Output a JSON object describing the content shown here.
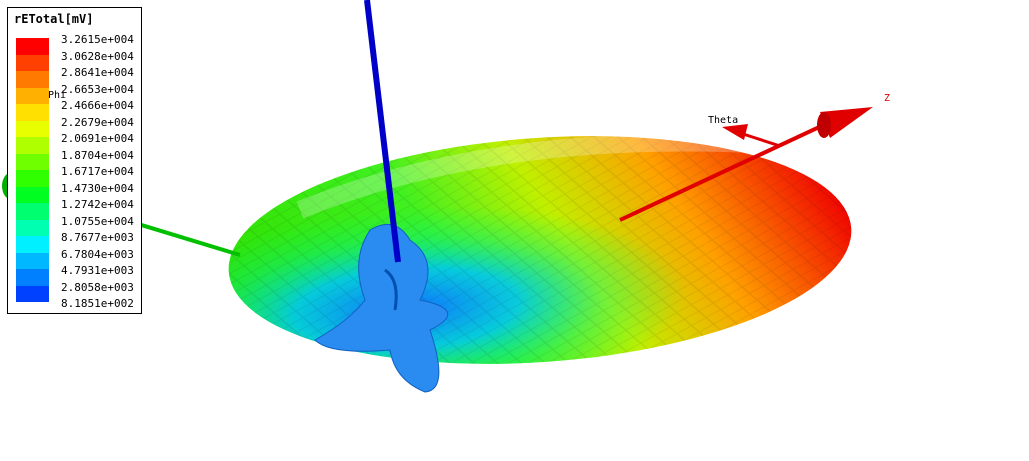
{
  "chart_data": {
    "type": "3d-radiation-pattern",
    "quantity": "rETotal[mV]",
    "colorbar": {
      "title": "rETotal[mV]",
      "ticks": [
        "3.2615e+004",
        "3.0628e+004",
        "2.8641e+004",
        "2.6653e+004",
        "2.4666e+004",
        "2.2679e+004",
        "2.0691e+004",
        "1.8704e+004",
        "1.6717e+004",
        "1.4730e+004",
        "1.2742e+004",
        "1.0755e+004",
        "8.7677e+003",
        "6.7804e+003",
        "4.7931e+003",
        "2.8058e+003",
        "8.1851e+002"
      ],
      "range": [
        818.51,
        32615
      ],
      "colors": [
        "#ff0000",
        "#ff4000",
        "#ff7a00",
        "#ffb000",
        "#ffe000",
        "#e8ff00",
        "#b0ff00",
        "#70ff00",
        "#30ff00",
        "#00ff20",
        "#00ff70",
        "#00ffb0",
        "#00f0ff",
        "#00b8ff",
        "#0080ff",
        "#0040ff",
        "#0000ff"
      ]
    },
    "axes": {
      "x": "Phi",
      "y": "Theta",
      "z": "Z"
    },
    "axis_colors": {
      "phi": "#00cc00",
      "theta": "#ff0000",
      "z": "#ff0000",
      "vertical": "#0000cc"
    }
  }
}
